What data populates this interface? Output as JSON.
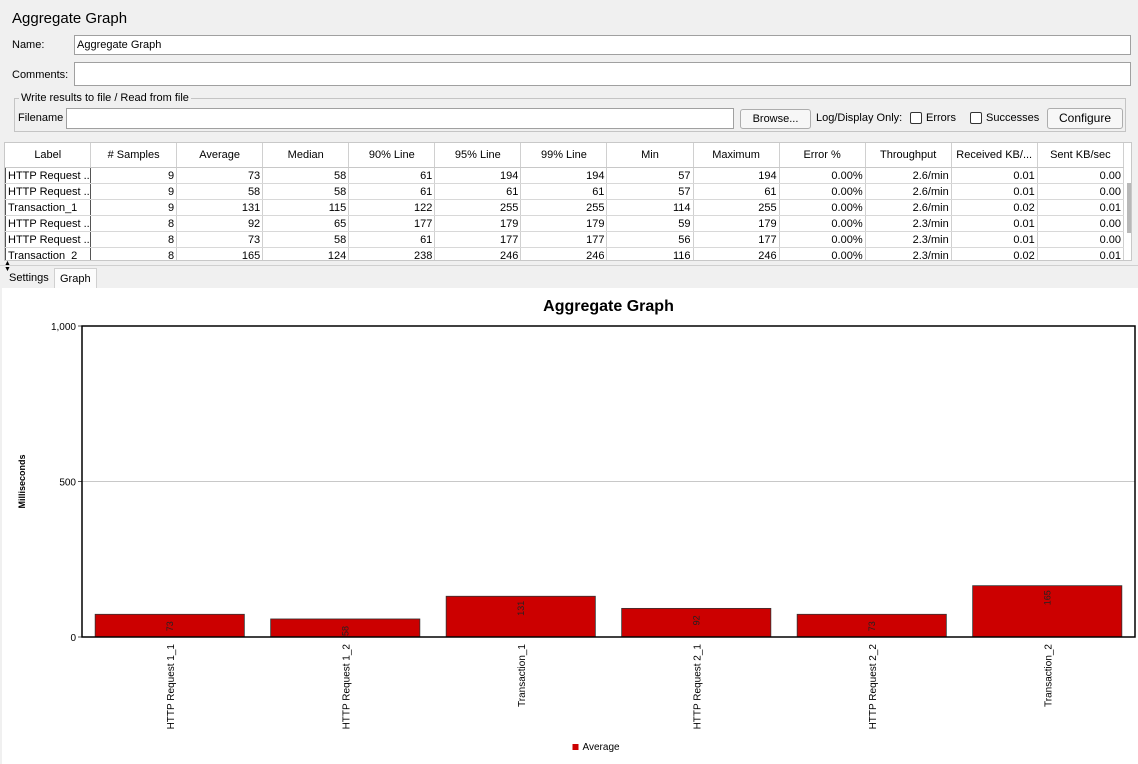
{
  "panel": {
    "title": "Aggregate Graph",
    "name_label": "Name:",
    "name_value": "Aggregate Graph",
    "comments_label": "Comments:",
    "comments_value": ""
  },
  "file_group": {
    "legend": "Write results to file / Read from file",
    "filename_label": "Filename",
    "filename_value": "",
    "browse_label": "Browse...",
    "log_display_label": "Log/Display Only:",
    "errors_label": "Errors",
    "errors_checked": false,
    "successes_label": "Successes",
    "successes_checked": false,
    "configure_label": "Configure"
  },
  "table": {
    "columns": [
      "Label",
      "# Samples",
      "Average",
      "Median",
      "90% Line",
      "95% Line",
      "99% Line",
      "Min",
      "Maximum",
      "Error %",
      "Throughput",
      "Received KB/...",
      "Sent KB/sec"
    ],
    "rows": [
      [
        "HTTP Request ...",
        "9",
        "73",
        "58",
        "61",
        "194",
        "194",
        "57",
        "194",
        "0.00%",
        "2.6/min",
        "0.01",
        "0.00"
      ],
      [
        "HTTP Request ...",
        "9",
        "58",
        "58",
        "61",
        "61",
        "61",
        "57",
        "61",
        "0.00%",
        "2.6/min",
        "0.01",
        "0.00"
      ],
      [
        "Transaction_1",
        "9",
        "131",
        "115",
        "122",
        "255",
        "255",
        "114",
        "255",
        "0.00%",
        "2.6/min",
        "0.02",
        "0.01"
      ],
      [
        "HTTP Request ...",
        "8",
        "92",
        "65",
        "177",
        "179",
        "179",
        "59",
        "179",
        "0.00%",
        "2.3/min",
        "0.01",
        "0.00"
      ],
      [
        "HTTP Request ...",
        "8",
        "73",
        "58",
        "61",
        "177",
        "177",
        "56",
        "177",
        "0.00%",
        "2.3/min",
        "0.01",
        "0.00"
      ],
      [
        "Transaction_2",
        "8",
        "165",
        "124",
        "238",
        "246",
        "246",
        "116",
        "246",
        "0.00%",
        "2.3/min",
        "0.02",
        "0.01"
      ]
    ]
  },
  "tabs": [
    {
      "label": "Settings",
      "active": false
    },
    {
      "label": "Graph",
      "active": true
    }
  ],
  "chart_data": {
    "type": "bar",
    "title": "Aggregate Graph",
    "xlabel": "",
    "ylabel": "Milliseconds",
    "categories": [
      "HTTP Request 1_1",
      "HTTP Request 1_2",
      "Transaction_1",
      "HTTP Request 2_1",
      "HTTP Request 2_2",
      "Transaction_2"
    ],
    "series": [
      {
        "name": "Average",
        "values": [
          73,
          58,
          131,
          92,
          73,
          165
        ],
        "color": "#cc0000"
      }
    ],
    "ylim": [
      0,
      1000
    ],
    "yticks": [
      0,
      500,
      1000
    ],
    "ytick_labels": [
      "0",
      "500",
      "1,000"
    ],
    "grid": true,
    "legend_position": "bottom-center"
  }
}
